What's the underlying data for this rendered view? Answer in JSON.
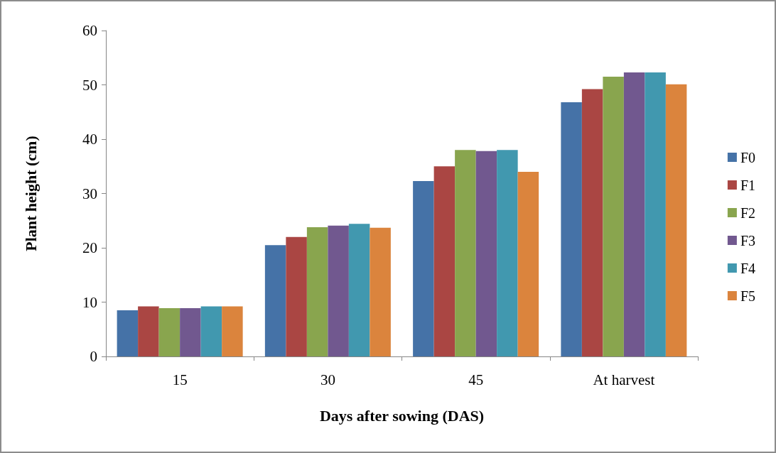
{
  "chart_data": {
    "type": "bar",
    "xlabel": "Days after sowing (DAS)",
    "ylabel": "Plant height (cm)",
    "categories": [
      "15",
      "30",
      "45",
      "At harvest"
    ],
    "series": [
      {
        "name": "F0",
        "color": "#4572a7",
        "values": [
          8.5,
          20.5,
          32.3,
          46.8
        ]
      },
      {
        "name": "F1",
        "color": "#aa4643",
        "values": [
          9.2,
          22.0,
          35.0,
          49.2
        ]
      },
      {
        "name": "F2",
        "color": "#89a54e",
        "values": [
          8.9,
          23.8,
          38.0,
          51.5
        ]
      },
      {
        "name": "F3",
        "color": "#71588f",
        "values": [
          8.9,
          24.1,
          37.8,
          52.3
        ]
      },
      {
        "name": "F4",
        "color": "#4198af",
        "values": [
          9.2,
          24.4,
          38.0,
          52.3
        ]
      },
      {
        "name": "F5",
        "color": "#db843d",
        "values": [
          9.2,
          23.7,
          34.0,
          50.1
        ]
      }
    ],
    "ylim": [
      0,
      60
    ],
    "yticks": [
      0,
      10,
      20,
      30,
      40,
      50,
      60
    ],
    "grid": false,
    "legend": "right"
  }
}
